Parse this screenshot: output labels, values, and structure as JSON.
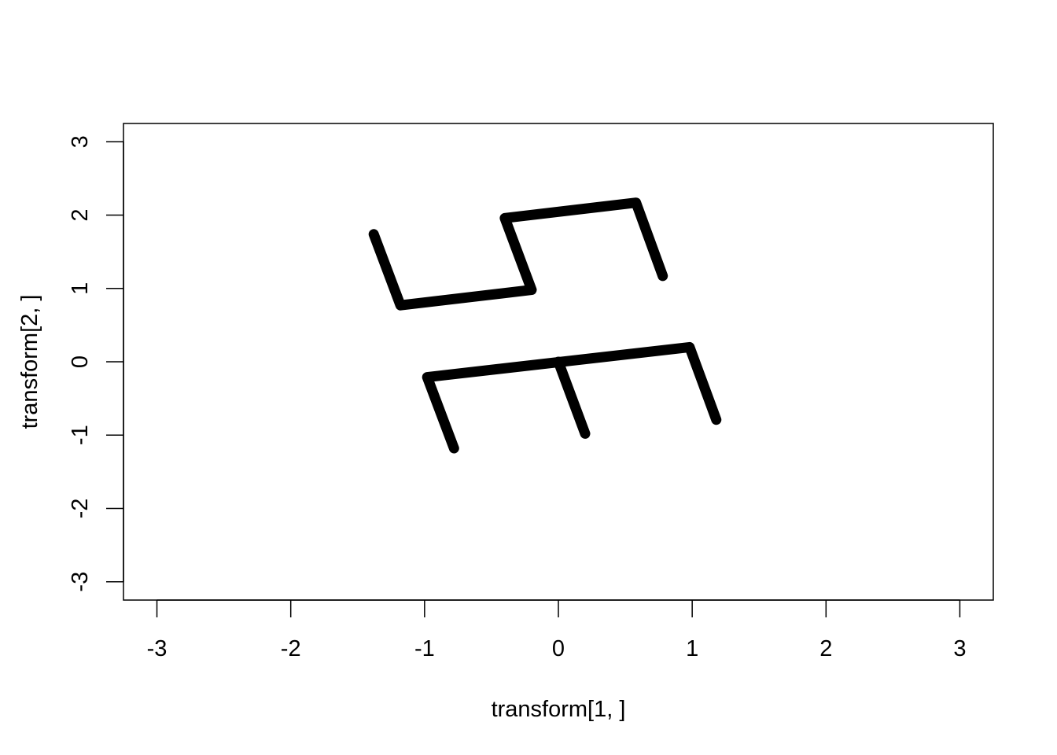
{
  "chart_data": {
    "type": "line",
    "xlabel": "transform[1, ]",
    "ylabel": "transform[2, ]",
    "xlim": [
      -3.25,
      3.25
    ],
    "ylim": [
      -3.25,
      3.25
    ],
    "x_ticks": [
      -3,
      -2,
      -1,
      0,
      1,
      2,
      3
    ],
    "y_ticks": [
      -3,
      -2,
      -1,
      0,
      1,
      2,
      3
    ],
    "x_tick_labels": [
      "-3",
      "-2",
      "-1",
      "0",
      "1",
      "2",
      "3"
    ],
    "y_tick_labels": [
      "-3",
      "-2",
      "-1",
      "0",
      "1",
      "2",
      "3"
    ],
    "grid": false,
    "legend": "none",
    "line_color": "#000000",
    "series": [
      {
        "points": [
          [
            -1.38,
            1.74
          ],
          [
            -1.18,
            0.77
          ],
          [
            -0.2,
            0.98
          ],
          [
            -0.4,
            1.96
          ],
          [
            0.58,
            2.17
          ],
          [
            0.78,
            1.17
          ]
        ]
      },
      {
        "points": [
          [
            -0.78,
            -1.18
          ],
          [
            -0.98,
            -0.21
          ],
          [
            0.98,
            0.2
          ],
          [
            1.18,
            -0.79
          ]
        ]
      },
      {
        "points": [
          [
            0.0,
            0.0
          ],
          [
            0.2,
            -0.98
          ]
        ]
      }
    ]
  }
}
